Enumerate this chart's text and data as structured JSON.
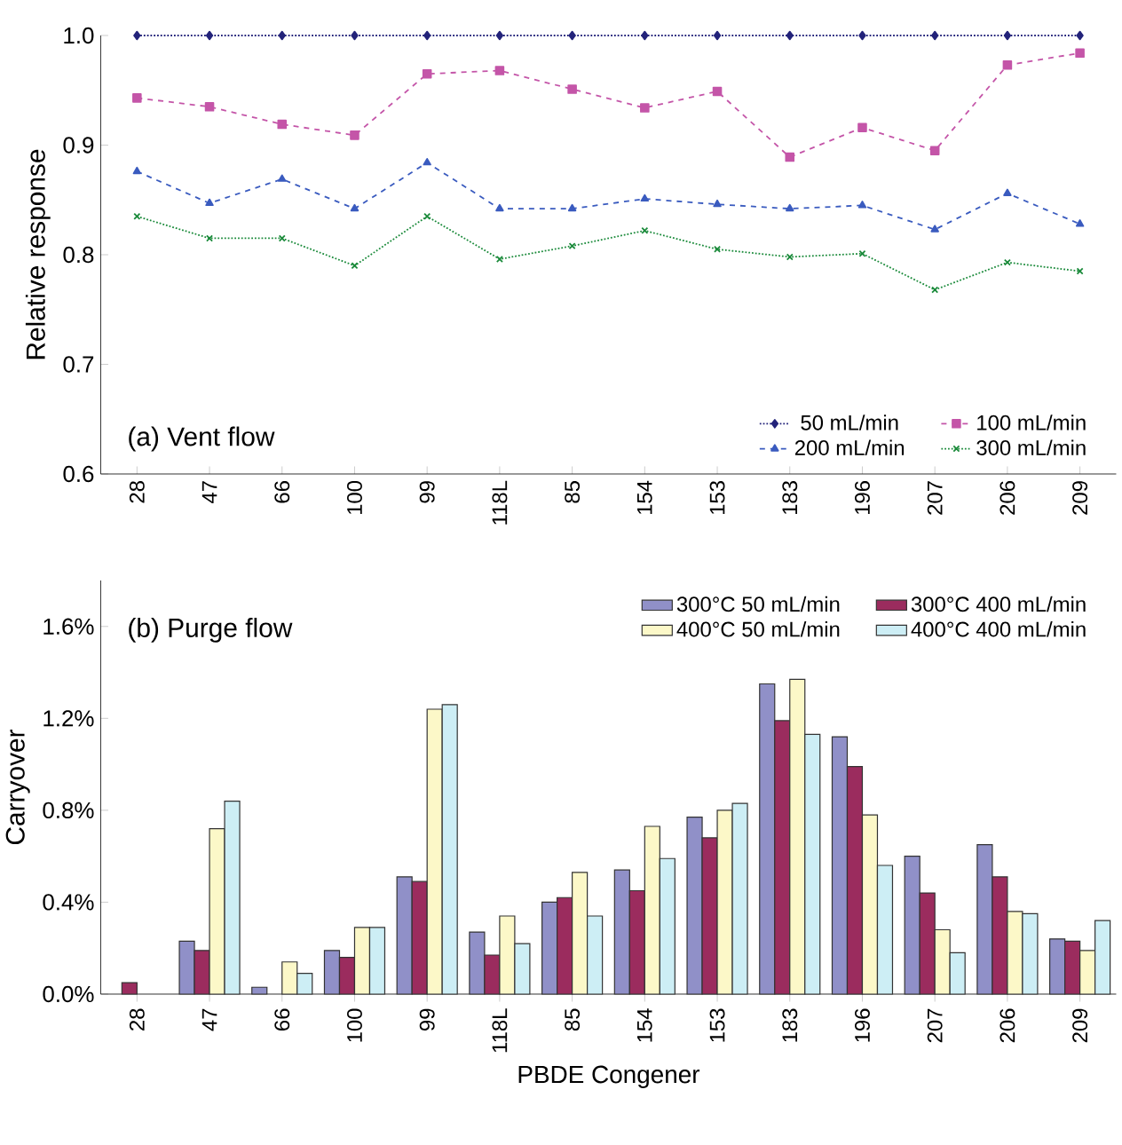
{
  "chart_data": [
    {
      "type": "line",
      "ylabel": "Relative response",
      "annotations": [
        "(a) Vent flow"
      ],
      "categories": [
        "28",
        "47",
        "66",
        "100",
        "99",
        "118L",
        "85",
        "154",
        "153",
        "183",
        "196",
        "207",
        "206",
        "209"
      ],
      "ylim": [
        0.6,
        1.0
      ],
      "yticks": [
        0.6,
        0.7,
        0.8,
        0.9,
        {
          "value": 1.0,
          "label": "1.0"
        }
      ],
      "legend": "bottom right",
      "grid": false,
      "series": [
        {
          "name": "50 mL/min",
          "color": "#23237a",
          "marker": "diamond",
          "line_style": "dotted",
          "values": [
            1,
            1,
            1,
            1,
            1,
            1,
            1,
            1,
            1,
            1,
            1,
            1,
            1,
            1
          ]
        },
        {
          "name": "100 mL/min",
          "color": "#c455a8",
          "marker": "square",
          "line_style": "dashed",
          "values": [
            0.943,
            0.935,
            0.919,
            0.909,
            0.965,
            0.968,
            0.951,
            0.934,
            0.949,
            0.889,
            0.916,
            0.895,
            0.973,
            0.984
          ]
        },
        {
          "name": "200 mL/min",
          "color": "#3a5bbf",
          "marker": "triangle",
          "line_style": "dashed",
          "values": [
            0.876,
            0.847,
            0.869,
            0.842,
            0.884,
            0.842,
            0.842,
            0.851,
            0.846,
            0.842,
            0.845,
            0.823,
            0.856,
            0.828
          ]
        },
        {
          "name": "300 mL/min",
          "color": "#1a8a3a",
          "marker": "cross",
          "line_style": "dotted",
          "values": [
            0.835,
            0.815,
            0.815,
            0.79,
            0.835,
            0.796,
            0.808,
            0.822,
            0.805,
            0.798,
            0.801,
            0.768,
            0.793,
            0.785
          ]
        }
      ]
    },
    {
      "type": "bar",
      "xlabel": "PBDE Congener",
      "ylabel": "Carryover",
      "annotations": [
        "(b) Purge flow"
      ],
      "categories": [
        "28",
        "47",
        "66",
        "100",
        "99",
        "118L",
        "85",
        "154",
        "153",
        "183",
        "196",
        "207",
        "206",
        "209"
      ],
      "ylim": [
        0,
        1.8
      ],
      "yticks": [
        {
          "value": 0,
          "label": "0.0%"
        },
        {
          "value": 0.4,
          "label": "0.4%"
        },
        {
          "value": 0.8,
          "label": "0.8%"
        },
        {
          "value": 1.2,
          "label": "1.2%"
        },
        {
          "value": 1.6,
          "label": "1.6%"
        }
      ],
      "legend": "top right",
      "grid": false,
      "series": [
        {
          "name": "300°C 50 mL/min",
          "color": "#9090c8",
          "values": [
            null,
            0.23,
            0.03,
            0.19,
            0.51,
            0.27,
            0.4,
            0.54,
            0.77,
            1.35,
            1.12,
            0.6,
            0.65,
            0.24
          ]
        },
        {
          "name": "300°C 400 mL/min",
          "color": "#9b2c5e",
          "values": [
            0.05,
            0.19,
            null,
            0.16,
            0.49,
            0.17,
            0.42,
            0.45,
            0.68,
            1.19,
            0.99,
            0.44,
            0.51,
            0.23
          ]
        },
        {
          "name": "400°C 50 mL/min",
          "color": "#fcf8c8",
          "values": [
            null,
            0.72,
            0.14,
            0.29,
            1.24,
            0.34,
            0.53,
            0.73,
            0.8,
            1.37,
            0.78,
            0.28,
            0.36,
            0.19
          ]
        },
        {
          "name": "400°C 400 mL/min",
          "color": "#cdeef5",
          "values": [
            null,
            0.84,
            0.09,
            0.29,
            1.26,
            0.22,
            0.34,
            0.59,
            0.83,
            1.13,
            0.56,
            0.18,
            0.35,
            0.32
          ]
        }
      ]
    }
  ]
}
